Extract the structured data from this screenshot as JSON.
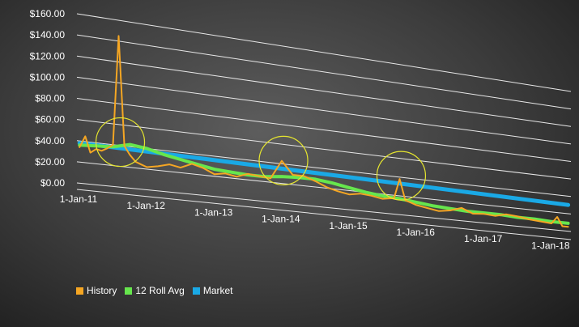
{
  "chart_data": {
    "type": "line",
    "title": "",
    "xlabel": "",
    "ylabel": "",
    "y_ticks": [
      "$0.00",
      "$20.00",
      "$40.00",
      "$60.00",
      "$80.00",
      "$100.00",
      "$120.00",
      "$140.00",
      "$160.00"
    ],
    "x_ticks": [
      "1-Jan-11",
      "1-Jan-12",
      "1-Jan-13",
      "1-Jan-14",
      "1-Jan-15",
      "1-Jan-16",
      "1-Jan-17",
      "1-Jan-18"
    ],
    "ylim": [
      0,
      160
    ],
    "xlim": [
      "2011-01-01",
      "2018-04-30"
    ],
    "grid": true,
    "legend_position": "bottom-left",
    "highlighted_points": [
      "2011-08",
      "2014-01",
      "2015-10"
    ],
    "series": [
      {
        "name": "History",
        "color": "#F5A623",
        "points": [
          [
            "2011-01",
            34
          ],
          [
            "2011-02",
            45
          ],
          [
            "2011-03",
            30
          ],
          [
            "2011-04",
            34
          ],
          [
            "2011-05",
            33
          ],
          [
            "2011-06",
            36
          ],
          [
            "2011-07",
            40
          ],
          [
            "2011-08",
            145
          ],
          [
            "2011-09",
            40
          ],
          [
            "2011-10",
            32
          ],
          [
            "2011-11",
            26
          ],
          [
            "2011-12",
            24
          ],
          [
            "2012-01",
            22
          ],
          [
            "2012-03",
            24
          ],
          [
            "2012-05",
            27
          ],
          [
            "2012-07",
            25
          ],
          [
            "2012-09",
            30
          ],
          [
            "2012-11",
            27
          ],
          [
            "2013-01",
            22
          ],
          [
            "2013-03",
            24
          ],
          [
            "2013-05",
            22
          ],
          [
            "2013-07",
            26
          ],
          [
            "2013-09",
            25
          ],
          [
            "2013-11",
            24
          ],
          [
            "2014-01",
            43
          ],
          [
            "2014-03",
            30
          ],
          [
            "2014-05",
            30
          ],
          [
            "2014-07",
            26
          ],
          [
            "2014-09",
            21
          ],
          [
            "2014-11",
            18
          ],
          [
            "2015-01",
            16
          ],
          [
            "2015-03",
            18
          ],
          [
            "2015-05",
            17
          ],
          [
            "2015-07",
            15
          ],
          [
            "2015-09",
            17
          ],
          [
            "2015-10",
            38
          ],
          [
            "2015-11",
            16
          ],
          [
            "2016-01",
            12
          ],
          [
            "2016-03",
            10
          ],
          [
            "2016-05",
            8
          ],
          [
            "2016-07",
            10
          ],
          [
            "2016-09",
            14
          ],
          [
            "2016-11",
            9
          ],
          [
            "2017-01",
            10
          ],
          [
            "2017-03",
            9
          ],
          [
            "2017-05",
            12
          ],
          [
            "2017-07",
            11
          ],
          [
            "2017-09",
            9
          ],
          [
            "2017-11",
            8
          ],
          [
            "2018-01",
            7
          ],
          [
            "2018-02",
            15
          ],
          [
            "2018-03",
            5
          ],
          [
            "2018-04",
            5
          ]
        ]
      },
      {
        "name": "12 Roll Avg",
        "color": "#66E64D",
        "points": [
          [
            "2011-01",
            36
          ],
          [
            "2011-04",
            37
          ],
          [
            "2011-07",
            38
          ],
          [
            "2011-10",
            42
          ],
          [
            "2012-01",
            40
          ],
          [
            "2012-04",
            36
          ],
          [
            "2012-07",
            33
          ],
          [
            "2012-10",
            30
          ],
          [
            "2013-01",
            27
          ],
          [
            "2013-04",
            26
          ],
          [
            "2013-07",
            25
          ],
          [
            "2013-10",
            25
          ],
          [
            "2014-01",
            27
          ],
          [
            "2014-04",
            28
          ],
          [
            "2014-07",
            28
          ],
          [
            "2014-10",
            26
          ],
          [
            "2015-01",
            23
          ],
          [
            "2015-04",
            20
          ],
          [
            "2015-07",
            18
          ],
          [
            "2015-10",
            17
          ],
          [
            "2016-01",
            15
          ],
          [
            "2016-04",
            13
          ],
          [
            "2016-07",
            12
          ],
          [
            "2016-10",
            11
          ],
          [
            "2017-01",
            11
          ],
          [
            "2017-04",
            11
          ],
          [
            "2017-07",
            10
          ],
          [
            "2017-10",
            10
          ],
          [
            "2018-01",
            9
          ],
          [
            "2018-04",
            9
          ]
        ]
      },
      {
        "name": "Market",
        "color": "#1AA9E6",
        "points": [
          [
            "2011-01",
            38
          ],
          [
            "2018-04",
            30
          ]
        ]
      }
    ]
  }
}
